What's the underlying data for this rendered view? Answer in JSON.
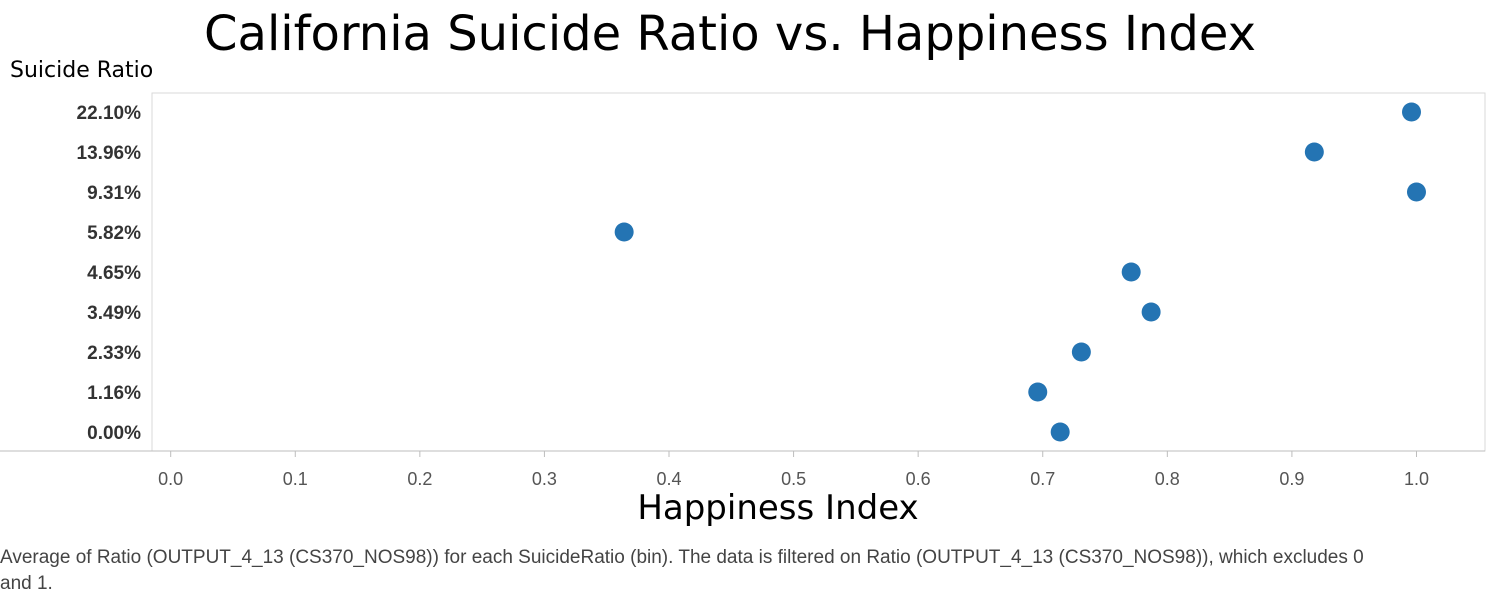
{
  "title": "California Suicide Ratio vs. Happiness Index",
  "caption": "Average of Ratio (OUTPUT_4_13 (CS370_NOS98)) for each SuicideRatio (bin). The data is filtered on Ratio (OUTPUT_4_13 (CS370_NOS98)), which excludes 0 and 1.",
  "chart_data": {
    "type": "scatter",
    "title": "California Suicide Ratio vs. Happiness Index",
    "xlabel": "Happiness Index",
    "ylabel": "Suicide Ratio",
    "xlim": [
      -0.015,
      1.055
    ],
    "x_ticks": [
      "0.0",
      "0.1",
      "0.2",
      "0.3",
      "0.4",
      "0.5",
      "0.6",
      "0.7",
      "0.8",
      "0.9",
      "1.0"
    ],
    "y_categories": [
      "22.10%",
      "13.96%",
      "9.31%",
      "5.82%",
      "4.65%",
      "3.49%",
      "2.33%",
      "1.16%",
      "0.00%"
    ],
    "points": [
      {
        "y": "22.10%",
        "x": 0.996
      },
      {
        "y": "13.96%",
        "x": 0.918
      },
      {
        "y": "9.31%",
        "x": 1.0
      },
      {
        "y": "5.82%",
        "x": 0.364
      },
      {
        "y": "4.65%",
        "x": 0.771
      },
      {
        "y": "3.49%",
        "x": 0.787
      },
      {
        "y": "2.33%",
        "x": 0.731
      },
      {
        "y": "1.16%",
        "x": 0.696
      },
      {
        "y": "0.00%",
        "x": 0.714
      }
    ],
    "marker_color": "#2474b3",
    "grid": false
  }
}
